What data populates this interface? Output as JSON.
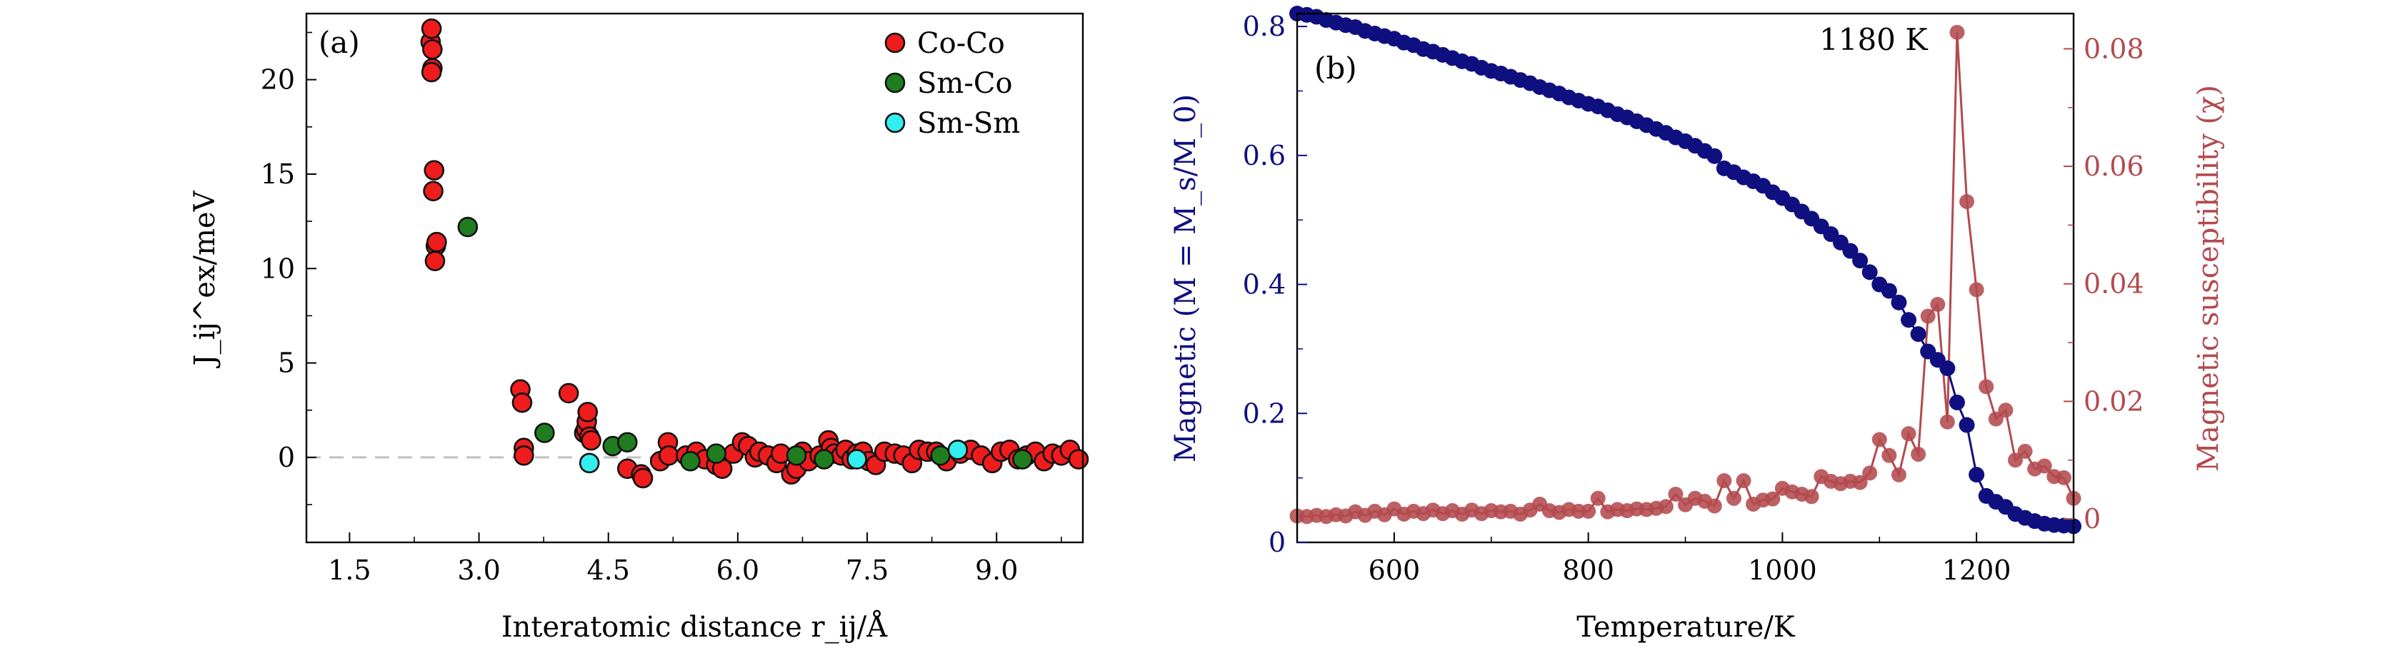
{
  "chart_data": [
    {
      "type": "scatter",
      "panel_label": "(a)",
      "xlabel": "Interatomic distance r_ij/Å",
      "ylabel": "J_ij^ex/meV",
      "xlim": [
        1.0,
        10.0
      ],
      "ylim": [
        -4.5,
        23.5
      ],
      "xticks": [
        "1.5",
        "3.0",
        "4.5",
        "6.0",
        "7.5",
        "9.0"
      ],
      "xtick_values": [
        1.5,
        3.0,
        4.5,
        6.0,
        7.5,
        9.0
      ],
      "yticks": [
        "0",
        "5",
        "10",
        "15",
        "20"
      ],
      "ytick_values": [
        0,
        5,
        10,
        15,
        20
      ],
      "reference_line": 0,
      "legend_position": "top-right",
      "series": [
        {
          "name": "Co-Co",
          "color": "#ee1c1c",
          "points": [
            [
              2.44,
              22.0
            ],
            [
              2.46,
              21.6
            ],
            [
              2.45,
              22.7
            ],
            [
              2.46,
              20.6
            ],
            [
              2.45,
              20.4
            ],
            [
              2.48,
              15.2
            ],
            [
              2.47,
              14.1
            ],
            [
              2.5,
              11.2
            ],
            [
              2.51,
              11.4
            ],
            [
              2.49,
              10.4
            ],
            [
              3.48,
              3.6
            ],
            [
              3.5,
              2.9
            ],
            [
              3.52,
              0.5
            ],
            [
              3.52,
              0.1
            ],
            [
              4.04,
              3.4
            ],
            [
              4.22,
              1.3
            ],
            [
              4.24,
              1.5
            ],
            [
              4.25,
              1.9
            ],
            [
              4.26,
              2.4
            ],
            [
              4.28,
              1.1
            ],
            [
              4.3,
              0.9
            ],
            [
              4.72,
              -0.6
            ],
            [
              4.88,
              -0.9
            ],
            [
              4.9,
              -1.1
            ],
            [
              5.1,
              -0.2
            ],
            [
              5.19,
              0.8
            ],
            [
              5.2,
              0.1
            ],
            [
              5.4,
              0.1
            ],
            [
              5.52,
              0.3
            ],
            [
              5.62,
              -0.1
            ],
            [
              5.75,
              -0.4
            ],
            [
              5.82,
              -0.6
            ],
            [
              5.95,
              0.2
            ],
            [
              6.05,
              0.8
            ],
            [
              6.12,
              0.6
            ],
            [
              6.2,
              0.0
            ],
            [
              6.25,
              0.3
            ],
            [
              6.35,
              0.1
            ],
            [
              6.45,
              -0.3
            ],
            [
              6.5,
              0.2
            ],
            [
              6.62,
              -0.9
            ],
            [
              6.68,
              -0.6
            ],
            [
              6.75,
              0.3
            ],
            [
              6.82,
              -0.2
            ],
            [
              6.95,
              0.1
            ],
            [
              7.05,
              0.9
            ],
            [
              7.08,
              0.5
            ],
            [
              7.12,
              0.2
            ],
            [
              7.2,
              0.1
            ],
            [
              7.25,
              0.4
            ],
            [
              7.32,
              -0.1
            ],
            [
              7.38,
              0.2
            ],
            [
              7.45,
              0.3
            ],
            [
              7.52,
              -0.2
            ],
            [
              7.6,
              -0.4
            ],
            [
              7.7,
              0.3
            ],
            [
              7.82,
              0.2
            ],
            [
              7.92,
              0.1
            ],
            [
              8.02,
              -0.3
            ],
            [
              8.1,
              0.4
            ],
            [
              8.2,
              0.3
            ],
            [
              8.3,
              0.3
            ],
            [
              8.42,
              -0.2
            ],
            [
              8.58,
              0.2
            ],
            [
              8.7,
              0.4
            ],
            [
              8.82,
              0.1
            ],
            [
              8.95,
              -0.3
            ],
            [
              9.05,
              0.3
            ],
            [
              9.15,
              0.4
            ],
            [
              9.25,
              -0.1
            ],
            [
              9.35,
              0.1
            ],
            [
              9.45,
              0.3
            ],
            [
              9.55,
              -0.2
            ],
            [
              9.65,
              0.2
            ],
            [
              9.75,
              0.1
            ],
            [
              9.85,
              0.4
            ],
            [
              9.95,
              -0.1
            ]
          ]
        },
        {
          "name": "Sm-Co",
          "color": "#1f7d1f",
          "points": [
            [
              2.87,
              12.2
            ],
            [
              3.76,
              1.3
            ],
            [
              4.55,
              0.6
            ],
            [
              4.72,
              0.8
            ],
            [
              5.45,
              -0.2
            ],
            [
              5.75,
              0.2
            ],
            [
              6.68,
              0.1
            ],
            [
              7.0,
              -0.1
            ],
            [
              8.35,
              0.1
            ],
            [
              9.3,
              -0.1
            ]
          ]
        },
        {
          "name": "Sm-Sm",
          "color": "#33eeee",
          "points": [
            [
              4.28,
              -0.3
            ],
            [
              7.38,
              -0.1
            ],
            [
              8.55,
              0.4
            ]
          ]
        }
      ]
    },
    {
      "type": "line",
      "panel_label": "(b)",
      "annotation": "1180 K",
      "xlabel": "Temperature/K",
      "ylabel_left": "Magnetic (M = M_s/M_0)",
      "ylabel_right": "Magnetic susceptibility (χ)",
      "xlim": [
        500,
        1300
      ],
      "ylim_left": [
        0,
        0.82
      ],
      "ylim_right": [
        -0.004,
        0.086
      ],
      "xticks": [
        "600",
        "800",
        "1000",
        "1200"
      ],
      "xtick_values": [
        600,
        800,
        1000,
        1200
      ],
      "yticks_left": [
        "0",
        "0.2",
        "0.4",
        "0.6",
        "0.8"
      ],
      "ytick_values_left": [
        0,
        0.2,
        0.4,
        0.6,
        0.8
      ],
      "yticks_right": [
        "0",
        "0.02",
        "0.04",
        "0.06",
        "0.08"
      ],
      "ytick_values_right": [
        0,
        0.02,
        0.04,
        0.06,
        0.08
      ],
      "series": [
        {
          "name": "M",
          "axis": "left",
          "color": "#0f0f80",
          "x": [
            500,
            510,
            520,
            530,
            540,
            550,
            560,
            570,
            580,
            590,
            600,
            610,
            620,
            630,
            640,
            650,
            660,
            670,
            680,
            690,
            700,
            710,
            720,
            730,
            740,
            750,
            760,
            770,
            780,
            790,
            800,
            810,
            820,
            830,
            840,
            850,
            860,
            870,
            880,
            890,
            900,
            910,
            920,
            930,
            940,
            950,
            960,
            970,
            980,
            990,
            1000,
            1010,
            1020,
            1030,
            1040,
            1050,
            1060,
            1070,
            1080,
            1090,
            1100,
            1110,
            1120,
            1130,
            1140,
            1150,
            1160,
            1170,
            1180,
            1190,
            1200,
            1210,
            1220,
            1230,
            1240,
            1250,
            1260,
            1270,
            1280,
            1290,
            1300
          ],
          "values": [
            0.82,
            0.818,
            0.815,
            0.81,
            0.806,
            0.802,
            0.799,
            0.793,
            0.789,
            0.785,
            0.781,
            0.775,
            0.771,
            0.765,
            0.761,
            0.756,
            0.751,
            0.746,
            0.742,
            0.736,
            0.731,
            0.727,
            0.722,
            0.717,
            0.712,
            0.706,
            0.701,
            0.696,
            0.69,
            0.685,
            0.68,
            0.676,
            0.67,
            0.664,
            0.659,
            0.653,
            0.647,
            0.641,
            0.635,
            0.628,
            0.622,
            0.615,
            0.607,
            0.599,
            0.58,
            0.574,
            0.566,
            0.56,
            0.553,
            0.543,
            0.534,
            0.524,
            0.513,
            0.502,
            0.49,
            0.478,
            0.465,
            0.452,
            0.437,
            0.419,
            0.4,
            0.39,
            0.372,
            0.345,
            0.323,
            0.296,
            0.283,
            0.27,
            0.217,
            0.182,
            0.105,
            0.072,
            0.063,
            0.055,
            0.044,
            0.038,
            0.033,
            0.029,
            0.027,
            0.026,
            0.025
          ]
        },
        {
          "name": "χ",
          "axis": "right",
          "color": "#b34a4e",
          "x": [
            500,
            510,
            520,
            530,
            540,
            550,
            560,
            570,
            580,
            590,
            600,
            610,
            620,
            630,
            640,
            650,
            660,
            670,
            680,
            690,
            700,
            710,
            720,
            730,
            740,
            750,
            760,
            770,
            780,
            790,
            800,
            810,
            820,
            830,
            840,
            850,
            860,
            870,
            880,
            890,
            900,
            910,
            920,
            930,
            940,
            950,
            960,
            970,
            980,
            990,
            1000,
            1010,
            1020,
            1030,
            1040,
            1050,
            1060,
            1070,
            1080,
            1090,
            1100,
            1110,
            1120,
            1130,
            1140,
            1150,
            1160,
            1170,
            1180,
            1190,
            1200,
            1210,
            1220,
            1230,
            1240,
            1250,
            1260,
            1270,
            1280,
            1290,
            1300
          ],
          "values": [
            0.0005,
            0.0004,
            0.0006,
            0.0004,
            0.0007,
            0.0005,
            0.0012,
            0.0006,
            0.0013,
            0.0007,
            0.0017,
            0.0008,
            0.0013,
            0.0009,
            0.0015,
            0.0009,
            0.0014,
            0.0008,
            0.0015,
            0.0009,
            0.0014,
            0.0012,
            0.0013,
            0.0008,
            0.0015,
            0.0025,
            0.0014,
            0.0011,
            0.0016,
            0.0013,
            0.0013,
            0.0035,
            0.0012,
            0.0016,
            0.0014,
            0.0017,
            0.0016,
            0.0018,
            0.0021,
            0.0042,
            0.0024,
            0.0035,
            0.003,
            0.0022,
            0.0065,
            0.0035,
            0.0065,
            0.0025,
            0.0032,
            0.0034,
            0.0052,
            0.0046,
            0.0042,
            0.0038,
            0.0072,
            0.0064,
            0.006,
            0.0064,
            0.0062,
            0.0078,
            0.0135,
            0.0108,
            0.0075,
            0.0145,
            0.011,
            0.0345,
            0.0365,
            0.0165,
            0.0828,
            0.054,
            0.039,
            0.0225,
            0.017,
            0.0185,
            0.01,
            0.0115,
            0.0085,
            0.009,
            0.0072,
            0.007,
            0.0035
          ]
        }
      ]
    }
  ]
}
